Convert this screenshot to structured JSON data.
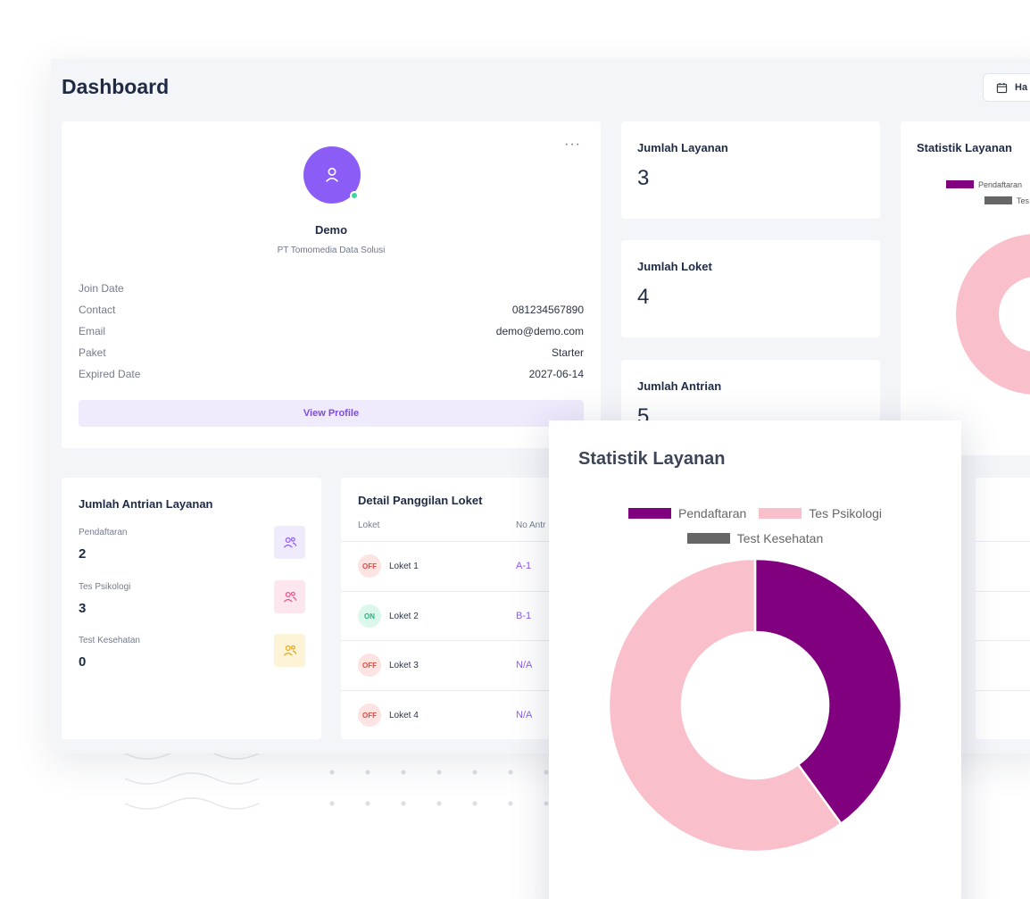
{
  "page": {
    "title": "Dashboard",
    "date_button": "Ha"
  },
  "profile": {
    "name": "Demo",
    "company": "PT Tomomedia Data Solusi",
    "rows": [
      {
        "label": "Join Date",
        "value": ""
      },
      {
        "label": "Contact",
        "value": "081234567890"
      },
      {
        "label": "Email",
        "value": "demo@demo.com"
      },
      {
        "label": "Paket",
        "value": "Starter"
      },
      {
        "label": "Expired Date",
        "value": "2027-06-14"
      }
    ],
    "button": "View Profile"
  },
  "stats": [
    {
      "label": "Jumlah Layanan",
      "value": "3"
    },
    {
      "label": "Jumlah Loket",
      "value": "4"
    },
    {
      "label": "Jumlah Antrian",
      "value": "5"
    }
  ],
  "small_chart": {
    "title": "Statistik Layanan",
    "legend": [
      "Pendaftaran",
      "Tes"
    ]
  },
  "antrian_layanan": {
    "title": "Jumlah Antrian Layanan",
    "items": [
      {
        "name": "Pendaftaran",
        "count": "2",
        "color": "#8b5cf6",
        "bg": "#efeafc"
      },
      {
        "name": "Tes Psikologi",
        "count": "3",
        "color": "#e8558a",
        "bg": "#fde6ee"
      },
      {
        "name": "Test Kesehatan",
        "count": "0",
        "color": "#e3a61a",
        "bg": "#fdf3d6"
      }
    ]
  },
  "detail_panggilan": {
    "title": "Detail Panggilan Loket",
    "col_loket": "Loket",
    "col_no": "No Antr",
    "rows": [
      {
        "status": "OFF",
        "loket": "Loket 1",
        "no": "A-1"
      },
      {
        "status": "ON",
        "loket": "Loket 2",
        "no": "B-1"
      },
      {
        "status": "OFF",
        "loket": "Loket 3",
        "no": "N/A"
      },
      {
        "status": "OFF",
        "loket": "Loket 4",
        "no": "N/A"
      }
    ]
  },
  "overlay_chart": {
    "title": "Statistik Layanan"
  },
  "chart_data": {
    "type": "pie",
    "title": "Statistik Layanan",
    "donut": true,
    "legend_position": "top",
    "categories": [
      "Pendaftaran",
      "Tes Psikologi",
      "Test Kesehatan"
    ],
    "values": [
      2,
      3,
      0
    ],
    "colors": [
      "#800080",
      "#f9c0cb",
      "#666666"
    ]
  }
}
